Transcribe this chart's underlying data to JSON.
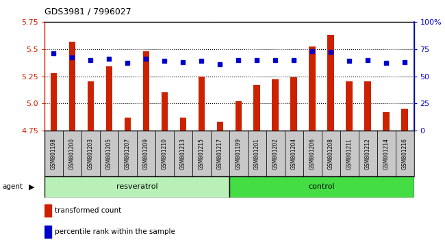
{
  "title": "GDS3981 / 7996027",
  "samples": [
    "GSM801198",
    "GSM801200",
    "GSM801203",
    "GSM801205",
    "GSM801207",
    "GSM801209",
    "GSM801210",
    "GSM801213",
    "GSM801215",
    "GSM801217",
    "GSM801199",
    "GSM801201",
    "GSM801202",
    "GSM801204",
    "GSM801206",
    "GSM801208",
    "GSM801211",
    "GSM801212",
    "GSM801214",
    "GSM801216"
  ],
  "bar_values": [
    5.28,
    5.57,
    5.2,
    5.34,
    4.87,
    5.48,
    5.1,
    4.87,
    5.25,
    4.83,
    5.02,
    5.17,
    5.22,
    5.24,
    5.52,
    5.63,
    5.2,
    5.2,
    4.92,
    4.95
  ],
  "dot_values": [
    71,
    67,
    65,
    66,
    62,
    66,
    64,
    63,
    64,
    61,
    65,
    65,
    65,
    65,
    73,
    72,
    64,
    65,
    62,
    63
  ],
  "bar_color": "#cc2200",
  "dot_color": "#0000cc",
  "ylim_left": [
    4.75,
    5.75
  ],
  "ylim_right": [
    0,
    100
  ],
  "yticks_left": [
    4.75,
    5.0,
    5.25,
    5.5,
    5.75
  ],
  "yticks_right": [
    0,
    25,
    50,
    75,
    100
  ],
  "ytick_labels_right": [
    "0",
    "25",
    "50",
    "75",
    "100%"
  ],
  "group_label_resveratrol": "resveratrol",
  "group_label_control": "control",
  "agent_label": "agent",
  "legend_bar": "transformed count",
  "legend_dot": "percentile rank within the sample",
  "bg_color_plot": "#ffffff",
  "xtick_bg": "#c8c8c8",
  "resv_color": "#b8f0b8",
  "ctrl_color": "#44dd44",
  "n_resv": 10,
  "n_ctrl": 10
}
